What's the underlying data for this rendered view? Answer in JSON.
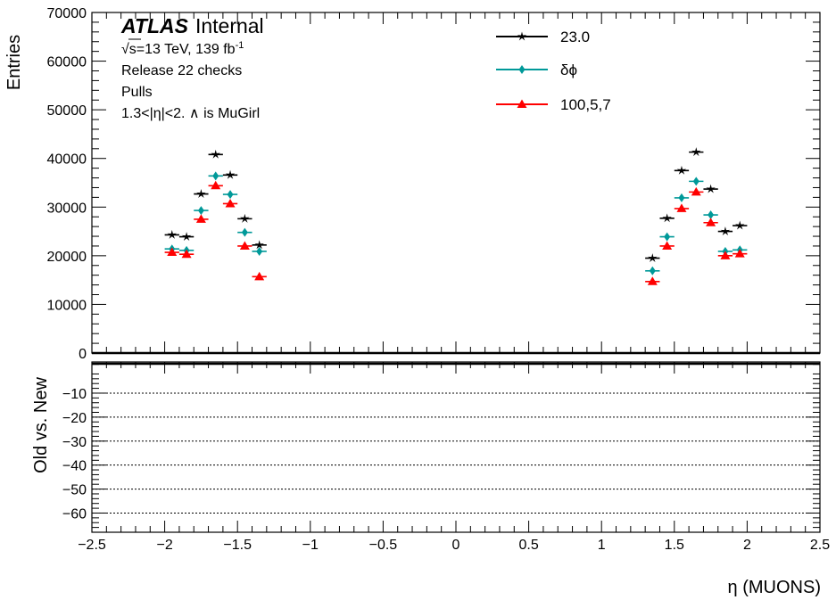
{
  "experiment": "ATLAS",
  "label": "Internal",
  "energy_line": "√s=13 TeV, 139 fb",
  "energy_sup": "-1",
  "info_lines": [
    "Release 22 checks",
    "Pulls",
    "1.3<|η|<2. ∧ is MuGirl"
  ],
  "chart_data": [
    {
      "type": "scatter",
      "panel": "main",
      "ylabel": "Entries",
      "xlim": [
        -2.5,
        2.5
      ],
      "ylim": [
        0,
        70000
      ],
      "yticks": [
        0,
        10000,
        20000,
        30000,
        40000,
        50000,
        60000,
        70000
      ],
      "ytick_labels": [
        "0",
        "10000",
        "20000",
        "30000",
        "40000",
        "50000",
        "60000",
        "70000"
      ],
      "legend_position": "top-center",
      "series": [
        {
          "name": "23.0",
          "color": "#000000",
          "marker": "star",
          "x": [
            -1.95,
            -1.85,
            -1.75,
            -1.65,
            -1.55,
            -1.45,
            -1.35,
            1.35,
            1.45,
            1.55,
            1.65,
            1.75,
            1.85,
            1.95
          ],
          "y": [
            24300,
            23900,
            32700,
            40800,
            36600,
            27600,
            22200,
            19500,
            27700,
            37500,
            41300,
            33700,
            25000,
            26200
          ]
        },
        {
          "name": "δϕ",
          "color": "#009999",
          "marker": "diamond",
          "x": [
            -1.95,
            -1.85,
            -1.75,
            -1.65,
            -1.55,
            -1.45,
            -1.35,
            1.35,
            1.45,
            1.55,
            1.65,
            1.75,
            1.85,
            1.95
          ],
          "y": [
            21400,
            21100,
            29300,
            36400,
            32600,
            24800,
            20900,
            16900,
            23900,
            31900,
            35300,
            28400,
            20900,
            21200
          ]
        },
        {
          "name": "100,5,7",
          "color": "#ff0000",
          "marker": "triangle",
          "x": [
            -1.95,
            -1.85,
            -1.75,
            -1.65,
            -1.55,
            -1.45,
            -1.35,
            1.35,
            1.45,
            1.55,
            1.65,
            1.75,
            1.85,
            1.95
          ],
          "y": [
            20700,
            20300,
            27500,
            34400,
            30700,
            22000,
            15700,
            14700,
            22000,
            29700,
            33100,
            26800,
            20000,
            20400
          ]
        }
      ]
    },
    {
      "type": "scatter",
      "panel": "ratio",
      "ylabel": "Old vs. New",
      "xlabel": "η (MUONS)",
      "xlim": [
        -2.5,
        2.5
      ],
      "ylim": [
        -68,
        3
      ],
      "xticks": [
        -2.5,
        -2,
        -1.5,
        -1,
        -0.5,
        0,
        0.5,
        1,
        1.5,
        2,
        2.5
      ],
      "xtick_labels": [
        "−2.5",
        "−2",
        "−1.5",
        "−1",
        "−0.5",
        "0",
        "0.5",
        "1",
        "1.5",
        "2",
        "2.5"
      ],
      "yticks": [
        -10,
        -20,
        -30,
        -40,
        -50,
        -60
      ],
      "ytick_labels": [
        "−10",
        "−20",
        "−30",
        "−40",
        "−50",
        "−60"
      ],
      "dashed_lines": [
        -10,
        -20,
        -30,
        -40,
        -50,
        -60
      ],
      "series": []
    }
  ]
}
